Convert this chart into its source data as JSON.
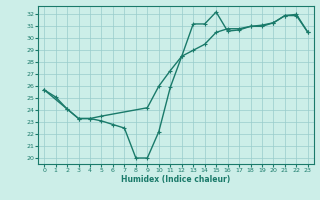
{
  "xlabel": "Humidex (Indice chaleur)",
  "bg_color": "#cceee8",
  "line_color": "#1a7a6a",
  "grid_color": "#99cccc",
  "xlim": [
    -0.5,
    23.5
  ],
  "ylim": [
    19.5,
    32.7
  ],
  "yticks": [
    20,
    21,
    22,
    23,
    24,
    25,
    26,
    27,
    28,
    29,
    30,
    31,
    32
  ],
  "xticks": [
    0,
    1,
    2,
    3,
    4,
    5,
    6,
    7,
    8,
    9,
    10,
    11,
    12,
    13,
    14,
    15,
    16,
    17,
    18,
    19,
    20,
    21,
    22,
    23
  ],
  "line1_x": [
    0,
    1,
    2,
    3,
    4,
    5,
    6,
    7,
    8,
    9,
    10,
    11,
    12,
    13,
    14,
    15,
    16,
    17,
    18,
    19,
    20,
    21,
    22,
    23
  ],
  "line1_y": [
    25.7,
    25.1,
    24.1,
    23.3,
    23.3,
    23.1,
    22.8,
    22.5,
    20.0,
    20.0,
    22.2,
    25.9,
    28.5,
    31.2,
    31.2,
    32.2,
    30.6,
    30.7,
    31.0,
    31.1,
    31.3,
    31.9,
    31.9,
    30.5
  ],
  "line2_x": [
    0,
    2,
    3,
    4,
    5,
    9,
    10,
    11,
    12,
    13,
    14,
    15,
    16,
    17,
    18,
    19,
    20,
    21,
    22,
    23
  ],
  "line2_y": [
    25.7,
    24.1,
    23.3,
    23.3,
    23.5,
    24.2,
    26.0,
    27.3,
    28.5,
    29.0,
    29.5,
    30.5,
    30.8,
    30.8,
    31.0,
    31.0,
    31.3,
    31.9,
    32.0,
    30.5
  ],
  "marker": "+",
  "marker_size": 3,
  "line_width": 1.0
}
